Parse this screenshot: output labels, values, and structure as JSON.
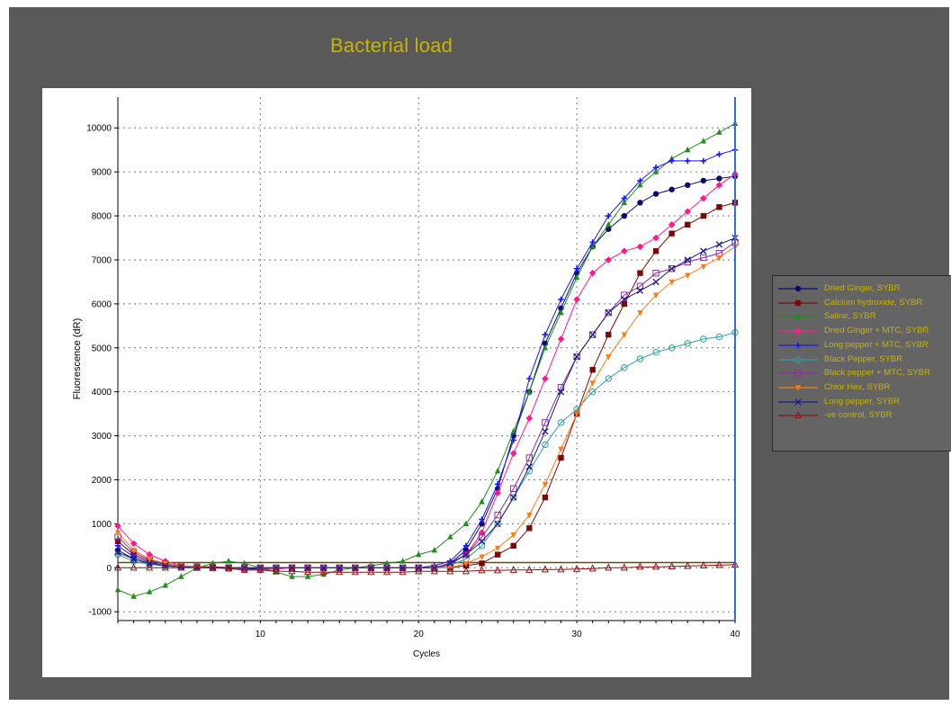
{
  "title": "Bacterial load",
  "chart_data": {
    "type": "line",
    "title": "Bacterial load",
    "xlabel": "Cycles",
    "ylabel": "Fluorescence (dR)",
    "xlim": [
      1,
      40
    ],
    "ylim": [
      -1200,
      10700
    ],
    "x_ticks": [
      "10",
      "20",
      "30",
      "40"
    ],
    "y_ticks": [
      "-1000",
      "0",
      "1000",
      "2000",
      "3000",
      "4000",
      "5000",
      "6000",
      "7000",
      "8000",
      "9000",
      "10000"
    ],
    "grid": true,
    "legend_position": "right",
    "threshold_y": 120,
    "cycle_marker_x": 40,
    "x": [
      1,
      2,
      3,
      4,
      5,
      6,
      7,
      8,
      9,
      10,
      11,
      12,
      13,
      14,
      15,
      16,
      17,
      18,
      19,
      20,
      21,
      22,
      23,
      24,
      25,
      26,
      27,
      28,
      29,
      30,
      31,
      32,
      33,
      34,
      35,
      36,
      37,
      38,
      39,
      40
    ],
    "series": [
      {
        "name": "Dried Ginger, SYBR",
        "color": "#0a0a6e",
        "marker": "circle",
        "values": [
          400,
          200,
          100,
          50,
          20,
          0,
          0,
          0,
          -20,
          -30,
          0,
          0,
          0,
          0,
          0,
          0,
          0,
          0,
          0,
          0,
          0,
          100,
          400,
          1000,
          1800,
          3000,
          4000,
          5100,
          5900,
          6700,
          7300,
          7700,
          8000,
          8300,
          8500,
          8600,
          8700,
          8800,
          8850,
          8900
        ]
      },
      {
        "name": "Calcium hydroxide, SYBR",
        "color": "#7a0a0a",
        "marker": "square",
        "values": [
          600,
          300,
          150,
          80,
          50,
          30,
          20,
          10,
          0,
          0,
          0,
          0,
          0,
          0,
          0,
          0,
          0,
          0,
          0,
          0,
          0,
          0,
          50,
          100,
          300,
          500,
          900,
          1600,
          2500,
          3500,
          4500,
          5300,
          6000,
          6700,
          7200,
          7600,
          7800,
          8000,
          8200,
          8300
        ]
      },
      {
        "name": "Saline, SYBR",
        "color": "#1e8c1e",
        "marker": "triangle",
        "values": [
          -500,
          -650,
          -550,
          -400,
          -200,
          0,
          100,
          150,
          100,
          0,
          -100,
          -200,
          -200,
          -150,
          -50,
          0,
          50,
          100,
          150,
          300,
          400,
          700,
          1000,
          1500,
          2200,
          3100,
          4000,
          5000,
          5800,
          6600,
          7300,
          7800,
          8300,
          8700,
          9000,
          9300,
          9500,
          9700,
          9900,
          10100
        ]
      },
      {
        "name": "Dried Ginger + MTC, SYBR",
        "color": "#ff1a8c",
        "marker": "diamond",
        "values": [
          950,
          550,
          300,
          150,
          50,
          20,
          0,
          -20,
          -50,
          -50,
          -30,
          0,
          0,
          0,
          0,
          0,
          0,
          0,
          0,
          0,
          0,
          100,
          300,
          800,
          1700,
          2600,
          3400,
          4300,
          5200,
          6100,
          6700,
          7000,
          7200,
          7300,
          7500,
          7800,
          8100,
          8400,
          8700,
          8950
        ]
      },
      {
        "name": "Long pepper + MTC, SYBR",
        "color": "#1414ff",
        "marker": "plus",
        "values": [
          500,
          250,
          120,
          50,
          20,
          0,
          0,
          0,
          0,
          0,
          0,
          0,
          0,
          0,
          0,
          0,
          0,
          0,
          0,
          0,
          50,
          150,
          500,
          1100,
          1900,
          2900,
          4300,
          5300,
          6100,
          6800,
          7400,
          8000,
          8400,
          8800,
          9100,
          9250,
          9250,
          9250,
          9400,
          9500
        ]
      },
      {
        "name": "Black Pepper, SYBR",
        "color": "#2e9e9e",
        "marker": "circle-open",
        "values": [
          300,
          150,
          80,
          40,
          20,
          0,
          0,
          0,
          0,
          0,
          0,
          0,
          0,
          0,
          0,
          0,
          0,
          0,
          0,
          0,
          0,
          50,
          200,
          500,
          1000,
          1600,
          2200,
          2800,
          3300,
          3600,
          4000,
          4300,
          4550,
          4750,
          4900,
          5000,
          5100,
          5200,
          5250,
          5350
        ]
      },
      {
        "name": "Black pepper + MTC, SYBR",
        "color": "#8c2e9e",
        "marker": "square-open",
        "values": [
          700,
          350,
          180,
          90,
          40,
          20,
          0,
          0,
          0,
          0,
          0,
          0,
          0,
          0,
          0,
          0,
          0,
          0,
          0,
          0,
          0,
          80,
          300,
          700,
          1200,
          1800,
          2500,
          3300,
          4100,
          4800,
          5300,
          5800,
          6200,
          6400,
          6700,
          6800,
          6950,
          7050,
          7150,
          7400
        ]
      },
      {
        "name": "Chlor Hex, SYBR",
        "color": "#ff7a14",
        "marker": "triangle-down",
        "values": [
          800,
          400,
          200,
          100,
          50,
          20,
          0,
          0,
          0,
          0,
          0,
          0,
          0,
          0,
          0,
          0,
          0,
          0,
          0,
          0,
          0,
          0,
          100,
          250,
          450,
          750,
          1200,
          1900,
          2700,
          3500,
          4200,
          4800,
          5300,
          5800,
          6200,
          6500,
          6650,
          6850,
          7050,
          7300
        ]
      },
      {
        "name": "Long pepper, SYBR",
        "color": "#1a1a8c",
        "marker": "x",
        "values": [
          350,
          200,
          100,
          50,
          20,
          0,
          0,
          0,
          0,
          0,
          0,
          0,
          0,
          0,
          0,
          0,
          0,
          0,
          0,
          0,
          0,
          100,
          300,
          600,
          1000,
          1600,
          2300,
          3100,
          4000,
          4800,
          5300,
          5800,
          6100,
          6300,
          6500,
          6800,
          7000,
          7200,
          7350,
          7500
        ]
      },
      {
        "name": "-ve control, SYBR",
        "color": "#8c1414",
        "marker": "triangle-open",
        "values": [
          0,
          0,
          0,
          0,
          0,
          0,
          0,
          -20,
          -50,
          -50,
          -80,
          -80,
          -100,
          -100,
          -100,
          -100,
          -100,
          -100,
          -100,
          -80,
          -80,
          -80,
          -80,
          -60,
          -60,
          -50,
          -50,
          -40,
          -40,
          -30,
          -20,
          0,
          0,
          20,
          20,
          30,
          40,
          50,
          60,
          70
        ]
      }
    ]
  }
}
